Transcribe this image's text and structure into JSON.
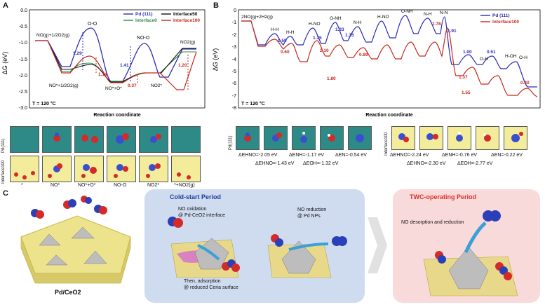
{
  "panelA": {
    "label": "A",
    "y_axis_label": "ΔG (eV)",
    "x_axis_label": "Reaction coordinate",
    "temperature": "T = 120 °C",
    "y_ticks": [
      "0.0",
      "-0.5",
      "-1.0",
      "-1.5",
      "-2.0",
      "-2.5",
      "-3.0"
    ],
    "legend": [
      "Pd (111)",
      "Interface0",
      "Interface50",
      "Interface100"
    ],
    "annotations": [
      "NO(g)+1/2O2(g)",
      "O-O",
      "NO-O",
      "NO2(g)",
      "NO*+1/2O2(g)",
      "NO*+O*",
      "NO2*",
      "1.29",
      "1.41",
      "1.14",
      "0.37",
      "1.20"
    ],
    "model_row_labels": [
      "Pd(111)",
      "Interface100"
    ],
    "model_captions": [
      "*",
      "NO*",
      "NO*+O*",
      "NO-O",
      "NO2*",
      "*+NO2(g)"
    ]
  },
  "panelB": {
    "label": "B",
    "y_axis_label": "ΔG (eV)",
    "x_axis_label": "Reaction coordinate",
    "temperature": "T = 120 °C",
    "y_ticks": [
      "0",
      "-1",
      "-2",
      "-3",
      "-4",
      "-5",
      "-6",
      "-7",
      "-8"
    ],
    "legend": [
      "Pd (111)",
      "Interface100"
    ],
    "annotations": [
      "2NO(g)+2H2(g)",
      "H-H",
      "H-H",
      "H-NO",
      "O-NH",
      "N-H",
      "H-NO",
      "O-NH",
      "N-H",
      "N-N",
      "O-H",
      "H-OH",
      "O-H",
      "0.59",
      "0.60",
      "1.35",
      "1.33",
      "1.35",
      "2.10",
      "0.89",
      "1.78",
      "1.91",
      "1.00",
      "0.51",
      "1.37",
      "1.55",
      "1.80",
      "0.40"
    ],
    "energies_pd": [
      "ΔEHNO=-2.05 eV",
      "ΔEHNO=-1.43 eV",
      "ΔENH=-1.17 eV",
      "ΔEOH=-1.32 eV",
      "ΔEN=-0.54 eV"
    ],
    "energies_ic": [
      "ΔEHNO=-2.24 eV",
      "ΔEHNO=-2.30 eV",
      "ΔENH=-0.76 eV",
      "ΔEOH=-2.77 eV",
      "ΔEN=-0.22 eV"
    ],
    "model_row_labels": [
      "Pd(111)",
      "Interface100"
    ]
  },
  "panelC": {
    "label": "C",
    "catalyst_label": "Pd/CeO2",
    "cold_start_title": "Cold-start Period",
    "no_oxidation": "NO oxidation",
    "no_oxidation_site": "@ Pd-CeO2 interface",
    "adsorption": "Then, adsorption",
    "adsorption_site": "@ reduced Ceria surface",
    "no_reduction": "NO reduction",
    "no_reduction_site": "@ Pd NPs",
    "twc_title": "TWC-operating Period",
    "twc_text": "NO desorption and reduction"
  },
  "colors": {
    "pd": "#2b2bb8",
    "interface0": "#2e8a3e",
    "interface50": "#111111",
    "interface100": "#c8281e",
    "cold_bg": "#cfdcf0",
    "twc_bg": "#f9dada",
    "cold_title": "#1e3c9c",
    "twc_title": "#d8322a"
  }
}
